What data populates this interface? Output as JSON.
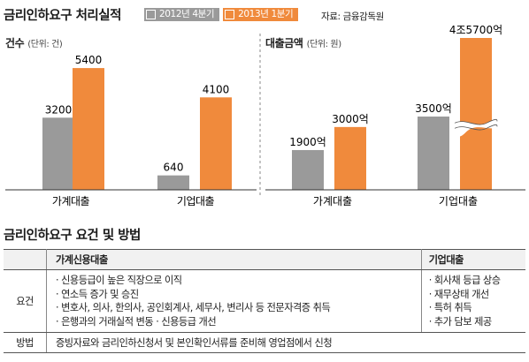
{
  "chart_data": [
    {
      "type": "bar",
      "title": "건수",
      "unit": "(단위: 건)",
      "categories": [
        "가계대출",
        "기업대출"
      ],
      "series": [
        {
          "name": "2012년 4분기",
          "values": [
            3200,
            640
          ],
          "labels": [
            "3200",
            "640"
          ],
          "color": "#9a9a9a"
        },
        {
          "name": "2013년 1분기",
          "values": [
            5400,
            4100
          ],
          "labels": [
            "5400",
            "4100"
          ],
          "color": "#f08a3c"
        }
      ],
      "ylim": [
        0,
        6500
      ]
    },
    {
      "type": "bar",
      "title": "대출금액",
      "unit": "(단위: 원)",
      "categories": [
        "가계대출",
        "기업대출"
      ],
      "series": [
        {
          "name": "2012년 4분기",
          "values": [
            1900,
            3500
          ],
          "labels": [
            "1900억",
            "3500억"
          ],
          "color": "#9a9a9a"
        },
        {
          "name": "2013년 1분기",
          "values": [
            3000,
            45700
          ],
          "labels": [
            "3000억",
            "4조5700억"
          ],
          "color": "#f08a3c"
        }
      ],
      "axis_break": true,
      "ylim": [
        0,
        7000
      ]
    }
  ],
  "header": {
    "title": "금리인하요구 처리실적",
    "legend": [
      {
        "label": "2012년 4분기",
        "color": "#9a9a9a"
      },
      {
        "label": "2013년 1분기",
        "color": "#f08a3c"
      }
    ],
    "source": "자료: 금융감독원"
  },
  "table": {
    "title": "금리인하요구 요건 및 방법",
    "col_household": "가계신용대출",
    "col_corporate": "기업대출",
    "row_requirements": "요건",
    "household_items": [
      "· 신용등급이 높은 직장으로 이직",
      "· 연소득 증가 및 승진",
      "· 변호사, 의사, 한의사, 공인회계사, 세무사, 변리사 등 전문자격증 취득",
      "· 은행과의 거래실적 변동 · 신용등급 개선"
    ],
    "corporate_items": [
      "· 회사채 등급 상승",
      "· 재무상태 개선",
      "· 특허 취득",
      "· 추가 담보 제공"
    ],
    "row_method": "방법",
    "method_text": "증빙자료와 금리인하신청서 및 본인확인서류를 준비해 영업점에서 신청"
  }
}
